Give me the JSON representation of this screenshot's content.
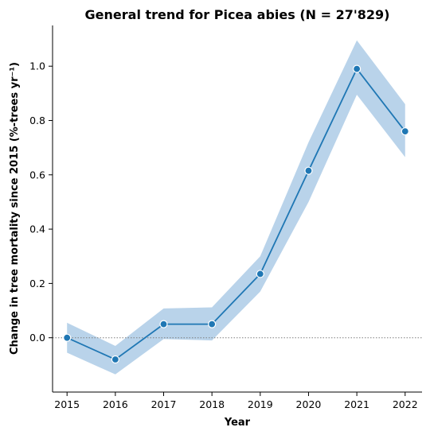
{
  "chart_data": {
    "type": "line",
    "title": "General trend for Picea abies  (N = 27'829)",
    "xlabel": "Year",
    "ylabel": "Change in tree mortality since 2015 (%-trees yr⁻¹)",
    "x": [
      2015,
      2016,
      2017,
      2018,
      2019,
      2020,
      2021,
      2022
    ],
    "xticks": [
      "2015",
      "2016",
      "2017",
      "2018",
      "2019",
      "2020",
      "2021",
      "2022"
    ],
    "yticks": [
      0.0,
      0.2,
      0.4,
      0.6,
      0.8,
      1.0
    ],
    "ytick_labels": [
      "0.0",
      "0.2",
      "0.4",
      "0.6",
      "0.8",
      "1.0"
    ],
    "ylim": [
      -0.2,
      1.15
    ],
    "xlim": [
      2014.7,
      2022.35
    ],
    "series": [
      {
        "values": [
          0.0,
          -0.08,
          0.05,
          0.05,
          0.235,
          0.615,
          0.99,
          0.76
        ],
        "ci_lower": [
          -0.055,
          -0.135,
          -0.005,
          -0.01,
          0.17,
          0.5,
          0.895,
          0.665
        ],
        "ci_upper": [
          0.055,
          -0.03,
          0.108,
          0.112,
          0.3,
          0.72,
          1.095,
          0.86
        ],
        "color": "#1f77b4",
        "band_color": "#b9d3ea"
      }
    ],
    "reference_line": {
      "y": 0.0,
      "style": "dotted",
      "color": "#7f7f7f"
    },
    "grid": false,
    "legend": "none"
  }
}
